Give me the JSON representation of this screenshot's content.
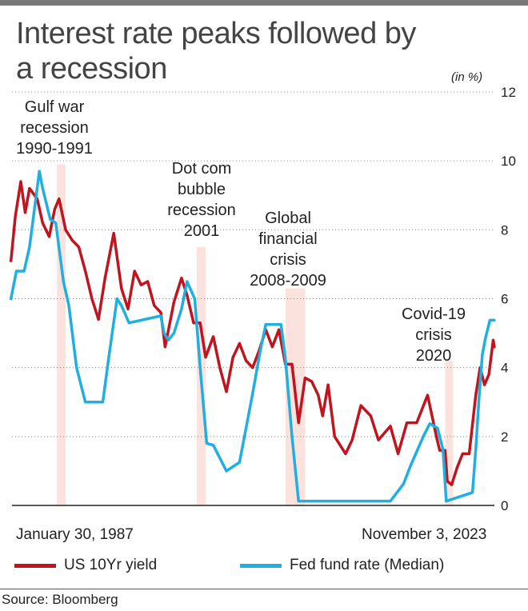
{
  "title": "Interest rate peaks followed by a recession",
  "unit_label": "(in %)",
  "source": "Source: Bloomberg",
  "x_start_label": "January 30, 1987",
  "x_end_label": "November 3, 2023",
  "colors": {
    "us10yr": "#c0141e",
    "fedfund": "#21aee0",
    "recession_band": "#fbe2dc",
    "grid": "#888888"
  },
  "chart_data": {
    "type": "line",
    "title": "Interest rate peaks followed by a recession",
    "ylabel": "(in %)",
    "ylim": [
      0,
      12
    ],
    "yticks": [
      0,
      2,
      4,
      6,
      8,
      10,
      12
    ],
    "xlim": [
      "1987-01-30",
      "2023-11-03"
    ],
    "legend": "bottom",
    "recessions": [
      {
        "label": "Gulf war recession 1990-1991",
        "lines": [
          "Gulf war",
          "recession",
          "1990-1991"
        ],
        "start": "1990-07",
        "end": "1991-03"
      },
      {
        "label": "Dot com bubble recession 2001",
        "lines": [
          "Dot com",
          "bubble",
          "recession",
          "2001"
        ],
        "start": "2001-03",
        "end": "2001-11"
      },
      {
        "label": "Global financial crisis 2008-2009",
        "lines": [
          "Global",
          "financial",
          "crisis",
          "2008-2009"
        ],
        "start": "2007-12",
        "end": "2009-06"
      },
      {
        "label": "Covid-19 crisis 2020",
        "lines": [
          "Covid-19",
          "crisis",
          "2020"
        ],
        "start": "2020-02",
        "end": "2020-08"
      }
    ],
    "series": [
      {
        "name": "US 10Yr yield",
        "color": "#c0141e",
        "x": [
          "1987-01",
          "1987-05",
          "1987-10",
          "1988-02",
          "1988-06",
          "1989-01",
          "1989-06",
          "1989-12",
          "1990-05",
          "1990-09",
          "1991-03",
          "1991-09",
          "1992-03",
          "1992-09",
          "1993-03",
          "1993-09",
          "1994-03",
          "1994-11",
          "1995-06",
          "1995-12",
          "1996-06",
          "1996-12",
          "1997-06",
          "1997-12",
          "1998-06",
          "1998-10",
          "1999-06",
          "2000-01",
          "2000-06",
          "2000-12",
          "2001-06",
          "2001-11",
          "2002-06",
          "2002-12",
          "2003-06",
          "2003-12",
          "2004-06",
          "2004-12",
          "2005-06",
          "2005-12",
          "2006-06",
          "2006-12",
          "2007-06",
          "2007-12",
          "2008-06",
          "2008-12",
          "2009-06",
          "2009-12",
          "2010-06",
          "2010-10",
          "2011-03",
          "2011-09",
          "2012-07",
          "2013-01",
          "2013-09",
          "2014-06",
          "2015-01",
          "2015-12",
          "2016-07",
          "2017-03",
          "2017-12",
          "2018-10",
          "2019-06",
          "2019-09",
          "2020-02",
          "2020-04",
          "2020-08",
          "2021-01",
          "2021-06",
          "2021-12",
          "2022-06",
          "2022-10",
          "2023-02",
          "2023-06",
          "2023-10",
          "2023-11"
        ],
        "values": [
          7.1,
          8.4,
          9.4,
          8.5,
          9.2,
          8.9,
          8.2,
          7.8,
          8.6,
          8.9,
          8.0,
          7.7,
          7.5,
          6.8,
          6.0,
          5.4,
          6.6,
          7.9,
          6.3,
          5.7,
          6.8,
          6.4,
          6.5,
          5.8,
          5.6,
          4.6,
          5.9,
          6.6,
          6.1,
          5.3,
          5.3,
          4.3,
          4.9,
          4.0,
          3.3,
          4.3,
          4.7,
          4.2,
          4.0,
          4.5,
          5.1,
          4.6,
          5.1,
          4.1,
          4.1,
          2.4,
          3.7,
          3.6,
          3.2,
          2.6,
          3.5,
          2.0,
          1.5,
          1.9,
          2.9,
          2.6,
          1.9,
          2.3,
          1.5,
          2.4,
          2.4,
          3.2,
          2.0,
          1.6,
          1.6,
          0.7,
          0.6,
          1.1,
          1.5,
          1.5,
          3.2,
          4.0,
          3.5,
          3.8,
          4.8,
          4.6
        ]
      },
      {
        "name": "Fed fund rate (Median)",
        "color": "#21aee0",
        "x": [
          "1987-01",
          "1987-06",
          "1988-01",
          "1988-06",
          "1989-03",
          "1989-06",
          "1990-01",
          "1990-06",
          "1991-01",
          "1991-06",
          "1992-01",
          "1992-09",
          "1994-01",
          "1994-06",
          "1995-02",
          "1995-06",
          "1996-01",
          "1998-06",
          "1998-09",
          "1999-01",
          "1999-06",
          "2000-01",
          "2000-06",
          "2001-01",
          "2001-06",
          "2001-12",
          "2002-06",
          "2003-06",
          "2004-06",
          "2004-12",
          "2005-06",
          "2006-01",
          "2006-06",
          "2007-08",
          "2007-12",
          "2008-06",
          "2008-12",
          "2015-12",
          "2016-12",
          "2017-06",
          "2018-06",
          "2018-12",
          "2019-07",
          "2019-12",
          "2020-03",
          "2022-03",
          "2022-06",
          "2022-09",
          "2022-12",
          "2023-03",
          "2023-07",
          "2023-11"
        ],
        "values": [
          6.0,
          6.8,
          6.8,
          7.5,
          9.7,
          9.2,
          8.3,
          8.2,
          6.5,
          5.8,
          4.0,
          3.0,
          3.0,
          4.2,
          6.0,
          5.8,
          5.3,
          5.5,
          5.0,
          4.8,
          5.0,
          5.7,
          6.5,
          6.0,
          4.0,
          1.8,
          1.75,
          1.0,
          1.25,
          2.25,
          3.25,
          4.5,
          5.25,
          5.25,
          4.25,
          2.0,
          0.125,
          0.125,
          0.625,
          1.125,
          2.0,
          2.375,
          2.25,
          1.625,
          0.125,
          0.375,
          1.625,
          3.125,
          4.375,
          4.875,
          5.375,
          5.375
        ]
      }
    ]
  }
}
